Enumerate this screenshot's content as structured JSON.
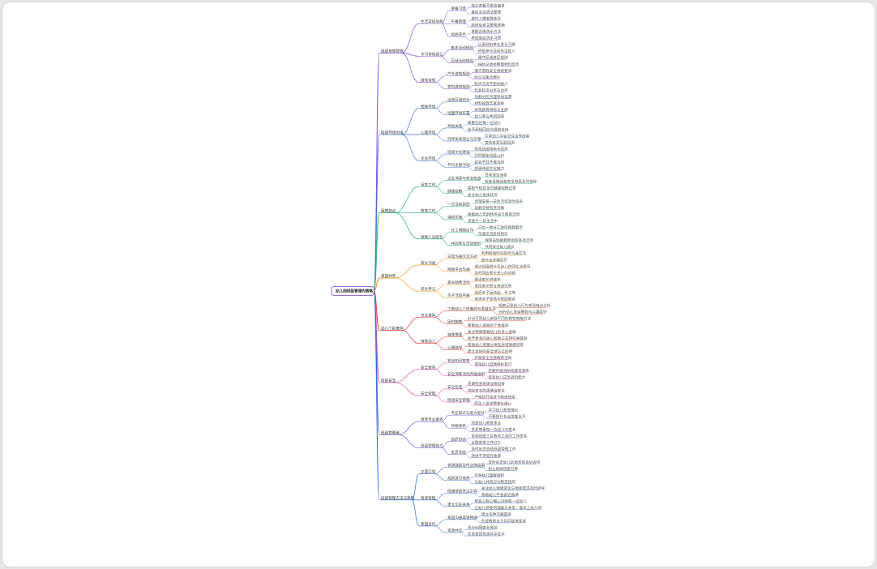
{
  "root": "幼儿园班级管理的策略",
  "colors": {
    "background": "#ffffff",
    "root_border": "#7b3fd1",
    "branches": [
      "#8a4de0",
      "#3f7ad6",
      "#22b573",
      "#f29a1d",
      "#e53935",
      "#d94fc2",
      "#6a5bd8",
      "#2f6fd6"
    ]
  },
  "branches": [
    {
      "label": "班级常规管理",
      "color": "#8a4de0",
      "children": [
        {
          "label": "生活常规培养",
          "children": [
            {
              "label": "进餐习惯",
              "children": [
                "独立进餐不挑食偏食",
                "餐后主动清洁整理"
              ]
            },
            {
              "label": "午睡管理",
              "children": [
                "按时入睡安静休息",
                "起床后自主整理床铺"
              ]
            },
            {
              "label": "如厕洗手",
              "children": [
                "掌握正确洗手方法",
                "养成便后洗手习惯"
              ]
            }
          ]
        },
        {
          "label": "学习常规建立",
          "children": [
            {
              "label": "集体活动规则",
              "children": [
                "认真倾听举手发言习惯",
                "积极参与活动专注投入"
              ]
            },
            {
              "label": "区域活动规则",
              "children": [
                "遵守区域进区规则",
                "按标记收拾整理材料玩具"
              ]
            }
          ]
        },
        {
          "label": "游戏常规",
          "children": [
            {
              "label": "户外游戏规则",
              "children": [
                "遵守游戏安全规则要求",
                "听信号集合整队"
              ]
            },
            {
              "label": "室内游戏规则",
              "children": [
                "轻声交流不影响他人",
                "玩具轮流分享与合作"
              ]
            }
          ]
        }
      ]
    },
    {
      "label": "班级环境创设",
      "color": "#3f7ad6",
      "children": [
        {
          "label": "物质环境",
          "children": [
            {
              "label": "活动区域划分",
              "children": [
                "动静分区合理布局设置",
                "材料投放丰富多样"
              ]
            },
            {
              "label": "墙面环境布置",
              "children": [
                "体现教育目标与主题",
                "幼儿参与共同创设"
              ]
            }
          ]
        },
        {
          "label": "心理环境",
          "children": [
            {
              "label": "师幼关系",
              "children": [
                "尊重信任每一位幼儿",
                "给予积极回应与情感支持"
              ]
            },
            {
              "label": "同伴关系建立与引导",
              "children": [
                "引导幼儿学会交往合作技能",
                "营造友爱互助氛围"
              ]
            }
          ]
        },
        {
          "label": "文化环境",
          "children": [
            {
              "label": "班级文化建设",
              "children": [
                "形成班级特色与班风",
                "共同制定班级公约"
              ]
            },
            {
              "label": "节日主题活动",
              "children": [
                "结合节日开展活动",
                "感受传统文化魅力"
              ]
            }
          ]
        }
      ]
    },
    {
      "label": "保教结合",
      "color": "#22b573",
      "children": [
        {
          "label": "保育工作",
          "children": [
            {
              "label": "卫生消毒与安全检查",
              "children": [
                "日常清洁消毒",
                "检查设施设备安全隐患及时排除"
              ]
            },
            {
              "label": "健康观察",
              "children": [
                "晨检午检及全日健康观察记录",
                "关注幼儿身体状况"
              ]
            }
          ]
        },
        {
          "label": "教育工作",
          "children": [
            {
              "label": "一日活动组织",
              "children": [
                "合理安排一日生活作息时间表",
                "动静交替有序开展"
              ]
            },
            {
              "label": "课程实施",
              "children": [
                "根据幼儿年龄特点设计教育活动",
                "渗透于一日生活中"
              ]
            }
          ]
        },
        {
          "label": "保教人员配合",
          "children": [
            {
              "label": "分工明确合作",
              "children": [
                "三位一体分工协作保教配合",
                "沟通交流及时到位"
              ]
            },
            {
              "label": "共同参与活动组织",
              "children": [
                "保育员协助教师组织各项活动",
                "共同关注幼儿成长"
              ]
            }
          ]
        }
      ]
    },
    {
      "label": "家园共育",
      "color": "#f29a1d",
      "children": [
        {
          "label": "家长沟通",
          "children": [
            {
              "label": "日常沟通交流方式",
              "children": [
                "利用接送时间及时沟通交流",
                "家长会定期召开"
              ]
            },
            {
              "label": "网络平台沟通",
              "children": [
                "通过班级群分享幼儿在园生活情况",
                "及时回应家长关心的问题"
              ]
            }
          ]
        },
        {
          "label": "家长参与",
          "children": [
            {
              "label": "家长助教活动",
              "children": [
                "邀请家长进课堂",
                "发挥家长职业资源优势"
              ]
            },
            {
              "label": "亲子活动开展",
              "children": [
                "组织亲子运动会、手工等",
                "增进亲子感情与家园联系"
              ]
            }
          ]
        }
      ]
    },
    {
      "label": "幼儿个别差异",
      "color": "#e53935",
      "children": [
        {
          "label": "关注差异",
          "children": [
            {
              "label": "了解幼儿个体差异与发展水平",
              "children": [
                "观察记录幼儿行为表现特点分析",
                "分析幼儿发展需要与兴趣爱好"
              ]
            },
            {
              "label": "因材施教",
              "children": [
                "针对不同幼儿采取不同的教育策略方法",
                "尊重幼儿发展的个体差异"
              ]
            }
          ]
        },
        {
          "label": "特殊幼儿",
          "children": [
            {
              "label": "特殊需要",
              "children": [
                "关注特殊需要幼儿的身心发展",
                "给予更多的关心帮助与支持引导鼓励"
              ]
            },
            {
              "label": "心理疏导",
              "children": [
                "帮助幼儿克服分离焦虑等情绪问题",
                "建立良好的安全感与信任感"
              ]
            }
          ]
        }
      ]
    },
    {
      "label": "班级安全",
      "color": "#d94fc2",
      "children": [
        {
          "label": "安全教育",
          "children": [
            {
              "label": "安全知识教育",
              "children": [
                "开展安全主题教育活动",
                "增强幼儿自我保护意识"
              ]
            },
            {
              "label": "安全演练活动开展组织",
              "children": [
                "定期开展消防地震等演练",
                "提高幼儿应急避险能力"
              ]
            }
          ]
        },
        {
          "label": "安全管理",
          "children": [
            {
              "label": "安全检查",
              "children": [
                "定期检查班级设施设备",
                "排除安全隐患确保安全"
              ]
            },
            {
              "label": "接送安全管理",
              "children": [
                "严格执行接送卡制度规定",
                "陌生人接送需家长确认"
              ]
            }
          ]
        }
      ]
    },
    {
      "label": "班级管理者",
      "color": "#6a5bd8",
      "children": [
        {
          "label": "教师专业素养",
          "children": [
            {
              "label": "专业知识与能力提升",
              "children": [
                "学习幼儿教育理论",
                "不断提升专业技能水平"
              ]
            },
            {
              "label": "师德修养",
              "children": [
                "热爱幼儿教育事业",
                "关爱尊重每一位幼儿与家长"
              ]
            }
          ]
        },
        {
          "label": "班级管理能力",
          "children": [
            {
              "label": "组织协调",
              "children": [
                "协调班级三位教师之间的工作关系",
                "合理安排工作分工"
              ]
            },
            {
              "label": "反思总结",
              "children": [
                "及时反思总结班级管理工作",
                "改进不足提升质量"
              ]
            }
          ]
        }
      ]
    },
    {
      "label": "班级管理方法与策略",
      "color": "#2f6fd6",
      "children": [
        {
          "label": "正面引导",
          "children": [
            {
              "label": "表扬鼓励及时正确运用",
              "children": [
                "及时肯定幼儿的进步和良好表现",
                "树立榜样积极引导"
              ]
            },
            {
              "label": "规则意识培养",
              "children": [
                "引导幼儿理解规则",
                "与幼儿共同讨论制定规则"
              ]
            }
          ]
        },
        {
          "label": "情感管理",
          "children": [
            {
              "label": "情绪情感关注引导",
              "children": [
                "关注幼儿情绪变化与情感需求及时疏导",
                "帮助幼儿学会表达情绪"
              ]
            },
            {
              "label": "建立信任关系",
              "children": [
                "用爱心耐心细心对待每一位幼儿",
                "让幼儿感受到温暖与关爱，喜欢上幼儿园"
              ]
            }
          ]
        },
        {
          "label": "家园合作",
          "children": [
            {
              "label": "家园沟通渠道畅通",
              "children": [
                "建立多种沟通渠道",
                "形成教育合力共同促进发展"
              ]
            },
            {
              "label": "资源共享",
              "children": [
                "充分利用家长资源",
                "实现家园资源共享互补"
              ]
            }
          ]
        }
      ]
    }
  ]
}
